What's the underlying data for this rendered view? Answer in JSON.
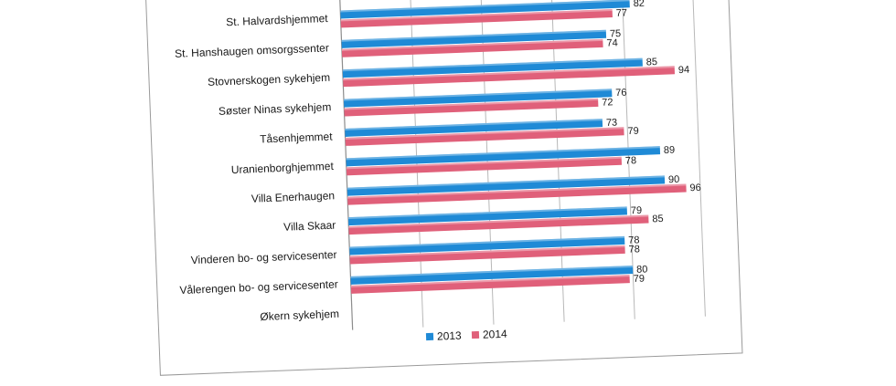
{
  "chart_data": {
    "type": "bar",
    "orientation": "horizontal",
    "categories": [
      "St. Halvardshjemmet",
      "St. Hanshaugen omsorgssenter",
      "Stovnerskogen sykehjem",
      "Søster Ninas sykehjem",
      "Tåsenhjemmet",
      "Uranienborghjemmet",
      "Villa Enerhaugen",
      "Villa Skaar",
      "Vinderen bo- og servicesenter",
      "Vålerengen bo- og servicesenter",
      "Økern sykehjem"
    ],
    "series": [
      {
        "name": "2013",
        "color": "#1f8ad6",
        "values": [
          82,
          75,
          85,
          76,
          73,
          89,
          90,
          79,
          78,
          80,
          null
        ],
        "labels": [
          "82",
          "75",
          "85",
          "76",
          "73",
          "89",
          "90",
          "79",
          "78",
          "80",
          ""
        ]
      },
      {
        "name": "2014",
        "color": "#e0607a",
        "values": [
          77,
          74,
          94,
          72,
          79,
          78,
          96,
          85,
          78,
          79,
          null
        ],
        "labels": [
          "77",
          "74",
          "94",
          "72",
          "79",
          "78",
          "96",
          "85",
          "78",
          "79",
          ""
        ]
      }
    ],
    "xlim": [
      0,
      100
    ],
    "grid": true,
    "legend_position": "bottom"
  }
}
